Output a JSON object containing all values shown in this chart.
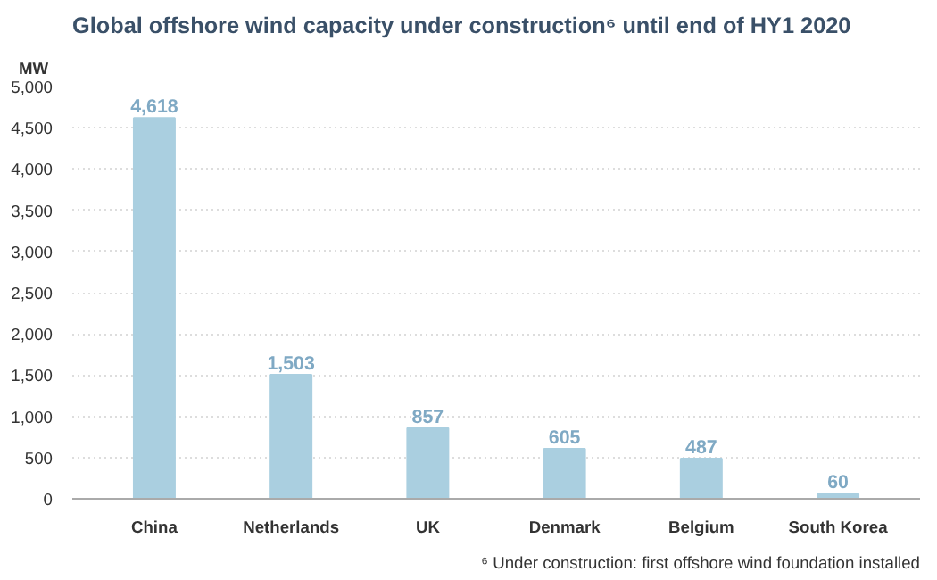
{
  "chart_data": {
    "type": "bar",
    "title": "Global offshore wind capacity under construction⁶ until end of HY1 2020",
    "ylabel": "MW",
    "categories": [
      "China",
      "Netherlands",
      "UK",
      "Denmark",
      "Belgium",
      "South Korea"
    ],
    "values": [
      4618,
      1503,
      857,
      605,
      487,
      60
    ],
    "color": "#aacfe0",
    "ylim": [
      0,
      5000
    ],
    "yticks": [
      {
        "value": 0,
        "label": "0"
      },
      {
        "value": 500,
        "label": "500"
      },
      {
        "value": 1000,
        "label": "1,000"
      },
      {
        "value": 1500,
        "label": "1,500"
      },
      {
        "value": 2000,
        "label": "2,000"
      },
      {
        "value": 2500,
        "label": "2,500"
      },
      {
        "value": 3000,
        "label": "3,000"
      },
      {
        "value": 3500,
        "label": "3,500"
      },
      {
        "value": 4000,
        "label": "4,000"
      },
      {
        "value": 4500,
        "label": "4,500"
      },
      {
        "value": 5000,
        "label": "5,000"
      }
    ],
    "grid": "y",
    "value_labels": [
      "4,618",
      "1,503",
      "857",
      "605",
      "487",
      "60"
    ],
    "annotations": [
      "⁶ Under construction: first offshore wind foundation installed"
    ]
  }
}
